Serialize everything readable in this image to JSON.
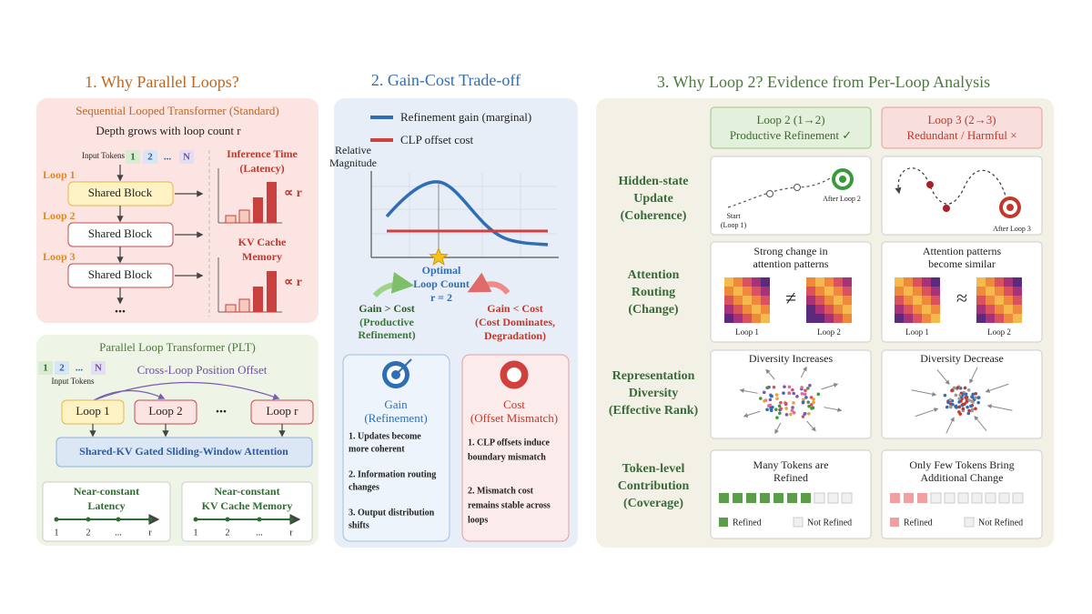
{
  "panel1": {
    "title": "1. Why Parallel Loops?",
    "sequential": {
      "title": "Sequential Looped Transformer (Standard)",
      "subtitle": "Depth grows with loop count r",
      "input_label": "Input Tokens",
      "tokens": [
        "1",
        "2",
        "...",
        "N"
      ],
      "loops": [
        "Loop 1",
        "Loop 2",
        "Loop 3"
      ],
      "block": "Shared Block",
      "ellipsis": "...",
      "latency_title": [
        "Inference Time",
        "(Latency)"
      ],
      "kv_title": [
        "KV Cache",
        "Memory"
      ],
      "proportional": "∝ r"
    },
    "parallel": {
      "title": "Parallel Loop Transformer (PLT)",
      "tokens": [
        "1",
        "2",
        "...",
        "N"
      ],
      "input_label": "Input Tokens",
      "offset": "Cross-Loop Position Offset",
      "loops": [
        "Loop 1",
        "Loop 2",
        "Loop r"
      ],
      "ellipsis": "...",
      "attention": "Shared-KV Gated Sliding-Window Attention",
      "latency": [
        "Near-constant",
        "Latency"
      ],
      "memory": [
        "Near-constant",
        "KV Cache Memory"
      ],
      "axis_ticks": [
        "1",
        "2",
        "...",
        "r"
      ]
    }
  },
  "panel2": {
    "title": "2. Gain-Cost Trade-off",
    "legend": [
      "Refinement gain (marginal)",
      "CLP offset cost"
    ],
    "y_label": [
      "Relative",
      "Magnitude"
    ],
    "optimal": [
      "Optimal",
      "Loop Count",
      "r = 2"
    ],
    "left": [
      "Gain > Cost",
      "(Productive",
      "Refinement)"
    ],
    "right": [
      "Gain < Cost",
      "(Cost Dominates,",
      "Degradation)"
    ],
    "gain_card": {
      "title": [
        "Gain",
        "(Refinement)"
      ],
      "items": [
        [
          "1. Updates become",
          "more coherent"
        ],
        [
          "2. Information routing",
          "changes"
        ],
        [
          "3. Output distribution",
          "shifts"
        ]
      ]
    },
    "cost_card": {
      "title": [
        "Cost",
        "(Offset Mismatch)"
      ],
      "items": [
        [
          "1. CLP offsets induce",
          "boundary mismatch"
        ],
        [
          "2. Mismatch cost",
          "remains stable across",
          "loops"
        ]
      ]
    }
  },
  "panel3": {
    "title": "3. Why Loop 2?  Evidence from Per-Loop Analysis",
    "columns": [
      [
        "Loop 2 (1→2)",
        "Productive Refinement ✓"
      ],
      [
        "Loop 3 (2→3)",
        "Redundant / Harmful ×"
      ]
    ],
    "hidden_state": {
      "label": [
        "Hidden-state",
        "Update",
        "(Coherence)"
      ],
      "start": [
        "Start",
        "(Loop 1)"
      ],
      "after_loop2": "After Loop 2",
      "after_loop3": "After Loop 3"
    },
    "attention": {
      "label": [
        "Attention",
        "Routing",
        "(Change)"
      ],
      "left_title": [
        "Strong change in",
        "attention patterns"
      ],
      "right_title": [
        "Attention patterns",
        "become similar"
      ],
      "left_symbol": "≠",
      "right_symbol": "≈",
      "maps": [
        "Loop 1",
        "Loop 2"
      ]
    },
    "diversity": {
      "label": [
        "Representation",
        "Diversity",
        "(Effective Rank)"
      ],
      "left_title": "Diversity Increases",
      "right_title": "Diversity Decrease"
    },
    "token": {
      "label": [
        "Token-level",
        "Contribution",
        "(Coverage)"
      ],
      "left_title": [
        "Many Tokens are",
        "Refined"
      ],
      "right_title": [
        "Only Few Tokens Bring",
        "Additional Change"
      ],
      "legend": [
        "Refined",
        "Not Refined"
      ]
    }
  }
}
